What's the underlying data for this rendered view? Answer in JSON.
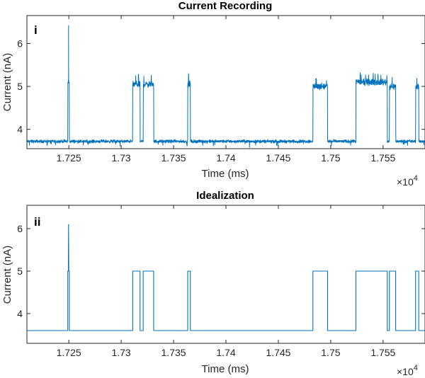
{
  "chart_data": [
    {
      "type": "line",
      "title": "Current Recording",
      "panel_label": "i",
      "xlabel": "Time (ms)",
      "ylabel": "Current (nA)",
      "x_multiplier": "×10",
      "x_multiplier_exp": "4",
      "xlim": [
        1.721,
        1.759
      ],
      "ylim": [
        3.55,
        6.65
      ],
      "x_ticks": [
        1.725,
        1.73,
        1.735,
        1.74,
        1.745,
        1.75,
        1.755
      ],
      "x_tick_labels": [
        "1.725",
        "1.73",
        "1.735",
        "1.74",
        "1.745",
        "1.75",
        "1.755"
      ],
      "y_ticks": [
        4,
        5,
        6
      ],
      "y_tick_labels": [
        "4",
        "5",
        "6"
      ],
      "grid": false,
      "noisy": true,
      "color": "#0072BD",
      "baseline": 3.72,
      "open_level": 5.05,
      "segments": [
        {
          "start": 1.7249,
          "end": 1.72505,
          "level": 5.1,
          "peak": 6.42
        },
        {
          "start": 1.7311,
          "end": 1.7318,
          "level": 5.05
        },
        {
          "start": 1.7321,
          "end": 1.7331,
          "level": 5.05
        },
        {
          "start": 1.73635,
          "end": 1.7366,
          "level": 5.05
        },
        {
          "start": 1.7483,
          "end": 1.7497,
          "level": 5.0
        },
        {
          "start": 1.7524,
          "end": 1.7554,
          "level": 5.1
        },
        {
          "start": 1.7556,
          "end": 1.7562,
          "level": 5.0
        },
        {
          "start": 1.7581,
          "end": 1.7584,
          "level": 5.0
        }
      ]
    },
    {
      "type": "line",
      "title": "Idealization",
      "panel_label": "ii",
      "xlabel": "Time (ms)",
      "ylabel": "Current (nA)",
      "x_multiplier": "×10",
      "x_multiplier_exp": "4",
      "xlim": [
        1.721,
        1.759
      ],
      "ylim": [
        3.3,
        6.55
      ],
      "x_ticks": [
        1.725,
        1.73,
        1.735,
        1.74,
        1.745,
        1.75,
        1.755
      ],
      "x_tick_labels": [
        "1.725",
        "1.73",
        "1.735",
        "1.74",
        "1.745",
        "1.75",
        "1.755"
      ],
      "y_ticks": [
        4,
        5,
        6
      ],
      "y_tick_labels": [
        "4",
        "5",
        "6"
      ],
      "grid": false,
      "noisy": false,
      "color": "#0072BD",
      "baseline": 3.6,
      "open_level": 5.0,
      "segments": [
        {
          "start": 1.7249,
          "end": 1.72505,
          "level": 5.0,
          "peak": 6.1
        },
        {
          "start": 1.7311,
          "end": 1.7318,
          "level": 5.0
        },
        {
          "start": 1.7321,
          "end": 1.7331,
          "level": 5.0
        },
        {
          "start": 1.73635,
          "end": 1.7366,
          "level": 5.0
        },
        {
          "start": 1.7483,
          "end": 1.7497,
          "level": 5.0
        },
        {
          "start": 1.7524,
          "end": 1.7554,
          "level": 5.0
        },
        {
          "start": 1.7556,
          "end": 1.7562,
          "level": 5.0
        },
        {
          "start": 1.7581,
          "end": 1.7584,
          "level": 5.0
        }
      ]
    }
  ]
}
